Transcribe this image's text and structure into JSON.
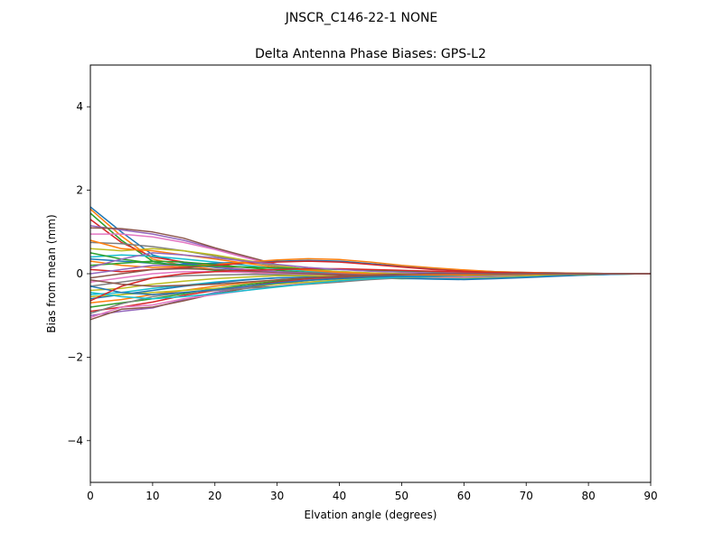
{
  "suptitle": "JNSCR_C146-22-1 NONE",
  "chart_data": {
    "type": "line",
    "title": "Delta Antenna Phase Biases: GPS-L2",
    "xlabel": "Elvation angle (degrees)",
    "ylabel": "Bias from mean (mm)",
    "xlim": [
      0,
      90
    ],
    "ylim": [
      -5,
      5
    ],
    "xticks": [
      0,
      10,
      20,
      30,
      40,
      50,
      60,
      70,
      80,
      90
    ],
    "yticks": [
      -4,
      -2,
      0,
      2,
      4
    ],
    "ytick_labels": [
      "−4",
      "−2",
      "0",
      "2",
      "4"
    ],
    "grid": false,
    "x": [
      0,
      5,
      10,
      15,
      20,
      25,
      30,
      35,
      40,
      45,
      50,
      55,
      60,
      65,
      70,
      75,
      80,
      85,
      90
    ],
    "colors": [
      "#1f77b4",
      "#ff7f0e",
      "#2ca02c",
      "#d62728",
      "#9467bd",
      "#8c564b",
      "#e377c2",
      "#7f7f7f",
      "#bcbd22",
      "#17becf"
    ],
    "series": [
      {
        "values": [
          1.6,
          1.0,
          0.45,
          0.25,
          0.15,
          0.08,
          0.02,
          -0.02,
          -0.05,
          -0.08,
          -0.1,
          -0.1,
          -0.08,
          -0.06,
          -0.04,
          -0.02,
          -0.01,
          0.0,
          0.0
        ]
      },
      {
        "values": [
          1.55,
          0.9,
          0.35,
          0.2,
          0.1,
          0.05,
          0.0,
          -0.04,
          -0.07,
          -0.09,
          -0.11,
          -0.1,
          -0.09,
          -0.06,
          -0.04,
          -0.02,
          -0.01,
          0.0,
          0.0
        ]
      },
      {
        "values": [
          1.45,
          0.8,
          0.3,
          0.15,
          0.08,
          0.03,
          -0.01,
          -0.05,
          -0.08,
          -0.1,
          -0.12,
          -0.11,
          -0.09,
          -0.07,
          -0.05,
          -0.03,
          -0.01,
          0.0,
          0.0
        ]
      },
      {
        "values": [
          1.3,
          0.75,
          0.4,
          0.28,
          0.18,
          0.1,
          0.04,
          0.0,
          -0.03,
          -0.06,
          -0.08,
          -0.08,
          -0.07,
          -0.05,
          -0.03,
          -0.02,
          -0.01,
          0.0,
          0.0
        ]
      },
      {
        "values": [
          1.15,
          1.05,
          0.95,
          0.8,
          0.6,
          0.4,
          0.2,
          0.08,
          0.0,
          -0.04,
          -0.06,
          -0.06,
          -0.05,
          -0.04,
          -0.03,
          -0.02,
          -0.01,
          0.0,
          0.0
        ]
      },
      {
        "values": [
          1.1,
          1.08,
          1.0,
          0.85,
          0.62,
          0.42,
          0.22,
          0.08,
          0.02,
          -0.02,
          -0.04,
          -0.05,
          -0.04,
          -0.03,
          -0.02,
          -0.01,
          0.0,
          0.0,
          0.0
        ]
      },
      {
        "values": [
          0.95,
          0.95,
          0.88,
          0.75,
          0.58,
          0.38,
          0.2,
          0.07,
          0.0,
          -0.03,
          -0.05,
          -0.05,
          -0.04,
          -0.03,
          -0.02,
          -0.01,
          0.0,
          0.0,
          0.0
        ]
      },
      {
        "values": [
          0.75,
          0.72,
          0.65,
          0.55,
          0.42,
          0.3,
          0.18,
          0.1,
          0.05,
          0.02,
          0.0,
          -0.01,
          -0.01,
          -0.01,
          0.0,
          0.0,
          0.0,
          0.0,
          0.0
        ]
      },
      {
        "values": [
          0.6,
          0.55,
          0.6,
          0.55,
          0.45,
          0.32,
          0.2,
          0.1,
          0.05,
          0.02,
          0.0,
          -0.01,
          -0.02,
          -0.01,
          -0.01,
          0.0,
          0.0,
          0.0,
          0.0
        ]
      },
      {
        "values": [
          0.4,
          0.45,
          0.42,
          0.35,
          0.28,
          0.2,
          0.12,
          0.06,
          0.02,
          0.0,
          -0.02,
          -0.02,
          -0.02,
          -0.01,
          -0.01,
          0.0,
          0.0,
          0.0,
          0.0
        ]
      },
      {
        "values": [
          0.35,
          0.3,
          0.25,
          0.22,
          0.25,
          0.28,
          0.3,
          0.32,
          0.3,
          0.24,
          0.18,
          0.12,
          0.08,
          0.05,
          0.03,
          0.02,
          0.01,
          0.0,
          0.0
        ]
      },
      {
        "values": [
          0.3,
          0.2,
          0.15,
          0.18,
          0.22,
          0.28,
          0.33,
          0.36,
          0.34,
          0.28,
          0.2,
          0.14,
          0.09,
          0.05,
          0.03,
          0.02,
          0.01,
          0.0,
          0.0
        ]
      },
      {
        "values": [
          0.2,
          0.25,
          0.3,
          0.28,
          0.22,
          0.15,
          0.08,
          0.03,
          0.0,
          -0.02,
          -0.03,
          -0.03,
          -0.02,
          -0.02,
          -0.01,
          0.0,
          0.0,
          0.0,
          0.0
        ]
      },
      {
        "values": [
          0.1,
          0.05,
          0.1,
          0.15,
          0.2,
          0.25,
          0.28,
          0.3,
          0.28,
          0.22,
          0.16,
          0.1,
          0.06,
          0.03,
          0.02,
          0.01,
          0.0,
          0.0,
          0.0
        ]
      },
      {
        "values": [
          0.0,
          0.1,
          0.2,
          0.2,
          0.16,
          0.1,
          0.05,
          0.02,
          0.0,
          -0.01,
          -0.02,
          -0.02,
          -0.01,
          -0.01,
          0.0,
          0.0,
          0.0,
          0.0,
          0.0
        ]
      },
      {
        "values": [
          -0.1,
          0.0,
          0.1,
          0.12,
          0.1,
          0.06,
          0.02,
          0.0,
          -0.02,
          -0.04,
          -0.05,
          -0.05,
          -0.04,
          -0.03,
          -0.02,
          -0.01,
          0.0,
          0.0,
          0.0
        ]
      },
      {
        "values": [
          -0.2,
          -0.1,
          0.0,
          0.05,
          0.05,
          0.03,
          0.0,
          -0.03,
          -0.06,
          -0.08,
          -0.1,
          -0.1,
          -0.08,
          -0.06,
          -0.04,
          -0.02,
          -0.01,
          0.0,
          0.0
        ]
      },
      {
        "values": [
          -0.3,
          -0.2,
          -0.1,
          -0.05,
          -0.03,
          -0.02,
          -0.02,
          -0.04,
          -0.06,
          -0.08,
          -0.1,
          -0.12,
          -0.12,
          -0.1,
          -0.07,
          -0.04,
          -0.02,
          -0.01,
          0.0
        ]
      },
      {
        "values": [
          -0.4,
          -0.35,
          -0.25,
          -0.18,
          -0.12,
          -0.08,
          -0.05,
          -0.05,
          -0.06,
          -0.08,
          -0.1,
          -0.12,
          -0.12,
          -0.1,
          -0.07,
          -0.04,
          -0.02,
          -0.01,
          0.0
        ]
      },
      {
        "values": [
          -0.5,
          -0.45,
          -0.35,
          -0.28,
          -0.2,
          -0.14,
          -0.1,
          -0.08,
          -0.08,
          -0.09,
          -0.1,
          -0.12,
          -0.13,
          -0.11,
          -0.08,
          -0.05,
          -0.03,
          -0.01,
          0.0
        ]
      },
      {
        "values": [
          -0.6,
          -0.5,
          -0.4,
          -0.3,
          -0.22,
          -0.15,
          -0.1,
          -0.08,
          -0.08,
          -0.09,
          -0.11,
          -0.13,
          -0.14,
          -0.12,
          -0.09,
          -0.06,
          -0.03,
          -0.01,
          0.0
        ]
      },
      {
        "values": [
          -0.7,
          -0.62,
          -0.5,
          -0.4,
          -0.3,
          -0.22,
          -0.15,
          -0.1,
          -0.06,
          -0.04,
          -0.04,
          -0.05,
          -0.05,
          -0.04,
          -0.03,
          -0.02,
          -0.01,
          0.0,
          0.0
        ]
      },
      {
        "values": [
          -0.8,
          -0.7,
          -0.6,
          -0.48,
          -0.36,
          -0.26,
          -0.18,
          -0.12,
          -0.08,
          -0.06,
          -0.05,
          -0.05,
          -0.05,
          -0.04,
          -0.03,
          -0.02,
          -0.01,
          0.0,
          0.0
        ]
      },
      {
        "values": [
          -0.9,
          -0.8,
          -0.68,
          -0.52,
          -0.4,
          -0.3,
          -0.2,
          -0.13,
          -0.08,
          -0.05,
          -0.03,
          -0.02,
          -0.01,
          0.0,
          0.0,
          0.0,
          0.0,
          0.0,
          0.0
        ]
      },
      {
        "values": [
          -1.0,
          -0.9,
          -0.82,
          -0.62,
          -0.45,
          -0.32,
          -0.22,
          -0.15,
          -0.1,
          -0.06,
          -0.04,
          -0.02,
          -0.01,
          0.0,
          0.0,
          0.0,
          0.0,
          0.0,
          0.0
        ]
      },
      {
        "values": [
          -1.1,
          -0.85,
          -0.8,
          -0.65,
          -0.48,
          -0.35,
          -0.24,
          -0.16,
          -0.1,
          -0.06,
          -0.03,
          -0.02,
          -0.01,
          0.0,
          0.0,
          0.0,
          0.0,
          0.0,
          0.0
        ]
      },
      {
        "values": [
          -1.05,
          -0.8,
          -0.75,
          -0.6,
          -0.5,
          -0.4,
          -0.3,
          -0.22,
          -0.15,
          -0.1,
          -0.06,
          -0.04,
          -0.02,
          -0.01,
          0.0,
          0.0,
          0.0,
          0.0,
          0.0
        ]
      },
      {
        "values": [
          -0.95,
          -0.72,
          -0.55,
          -0.45,
          -0.4,
          -0.35,
          -0.3,
          -0.25,
          -0.2,
          -0.14,
          -0.1,
          -0.07,
          -0.05,
          -0.03,
          -0.02,
          -0.01,
          0.0,
          0.0,
          0.0
        ]
      },
      {
        "values": [
          -0.55,
          -0.5,
          -0.45,
          -0.4,
          -0.35,
          -0.3,
          -0.25,
          -0.2,
          -0.15,
          -0.1,
          -0.08,
          -0.06,
          -0.05,
          -0.04,
          -0.03,
          -0.02,
          -0.01,
          0.0,
          0.0
        ]
      },
      {
        "values": [
          -0.45,
          -0.55,
          -0.6,
          -0.55,
          -0.48,
          -0.4,
          -0.32,
          -0.24,
          -0.17,
          -0.12,
          -0.08,
          -0.06,
          -0.04,
          -0.03,
          -0.02,
          -0.01,
          0.0,
          0.0,
          0.0
        ]
      },
      {
        "values": [
          -0.3,
          -0.45,
          -0.5,
          -0.45,
          -0.38,
          -0.3,
          -0.22,
          -0.16,
          -0.12,
          -0.08,
          -0.06,
          -0.05,
          -0.04,
          -0.03,
          -0.02,
          -0.01,
          0.0,
          0.0,
          0.0
        ]
      },
      {
        "values": [
          0.8,
          0.6,
          0.55,
          0.45,
          0.35,
          0.25,
          0.15,
          0.08,
          0.03,
          0.0,
          -0.02,
          -0.03,
          -0.03,
          -0.02,
          -0.02,
          -0.01,
          0.0,
          0.0,
          0.0
        ]
      },
      {
        "values": [
          0.5,
          0.35,
          0.25,
          0.2,
          0.18,
          0.16,
          0.14,
          0.12,
          0.1,
          0.08,
          0.06,
          0.05,
          0.04,
          0.03,
          0.02,
          0.01,
          0.0,
          0.0,
          0.0
        ]
      },
      {
        "values": [
          -0.65,
          -0.3,
          -0.1,
          0.0,
          0.05,
          0.08,
          0.1,
          0.12,
          0.12,
          0.1,
          0.08,
          0.06,
          0.04,
          0.03,
          0.02,
          0.01,
          0.0,
          0.0,
          0.0
        ]
      },
      {
        "values": [
          0.15,
          0.35,
          0.5,
          0.45,
          0.38,
          0.3,
          0.22,
          0.15,
          0.1,
          0.06,
          0.04,
          0.02,
          0.01,
          0.0,
          0.0,
          0.0,
          0.0,
          0.0,
          0.0
        ]
      },
      {
        "values": [
          -0.15,
          -0.25,
          -0.3,
          -0.28,
          -0.25,
          -0.2,
          -0.15,
          -0.1,
          -0.06,
          -0.03,
          -0.01,
          0.0,
          0.0,
          0.0,
          0.0,
          0.0,
          0.0,
          0.0,
          0.0
        ]
      }
    ]
  }
}
